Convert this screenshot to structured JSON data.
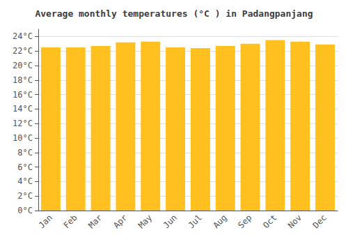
{
  "chart_data": {
    "type": "bar",
    "title": "Average monthly temperatures (°C ) in Padangpanjang",
    "categories": [
      "Jan",
      "Feb",
      "Mar",
      "Apr",
      "May",
      "Jun",
      "Jul",
      "Aug",
      "Sep",
      "Oct",
      "Nov",
      "Dec"
    ],
    "values": [
      22.5,
      22.5,
      22.7,
      23.2,
      23.3,
      22.5,
      22.4,
      22.7,
      23.0,
      23.5,
      23.3,
      22.9
    ],
    "color": "#FFC020",
    "ylim": [
      0,
      25
    ],
    "yticks": [
      {
        "value": 0,
        "label": "0°C"
      },
      {
        "value": 2,
        "label": "2°C"
      },
      {
        "value": 4,
        "label": "4°C"
      },
      {
        "value": 6,
        "label": "6°C"
      },
      {
        "value": 8,
        "label": "8°C"
      },
      {
        "value": 10,
        "label": "10°C"
      },
      {
        "value": 12,
        "label": "12°C"
      },
      {
        "value": 14,
        "label": "14°C"
      },
      {
        "value": 16,
        "label": "16°C"
      },
      {
        "value": 18,
        "label": "18°C"
      },
      {
        "value": 20,
        "label": "20°C"
      },
      {
        "value": 22,
        "label": "22°C"
      },
      {
        "value": 24,
        "label": "24°C"
      }
    ],
    "grid": true
  }
}
